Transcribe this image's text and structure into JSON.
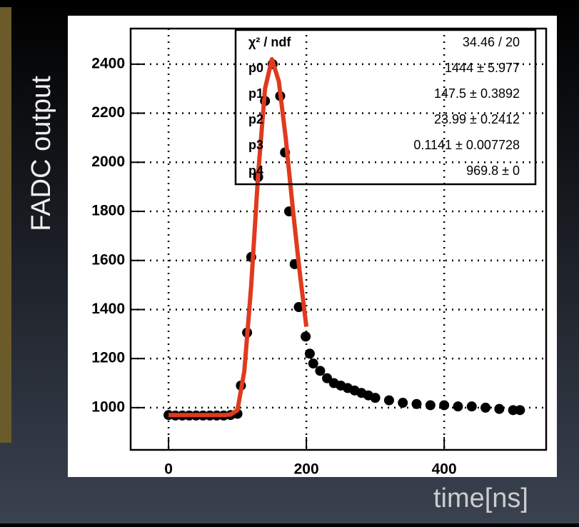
{
  "chart_data": {
    "type": "scatter",
    "xlabel": "time[ns]",
    "ylabel": "FADC output",
    "xlim": [
      -55,
      548
    ],
    "ylim": [
      828,
      2545
    ],
    "xticks": [
      0,
      200,
      400
    ],
    "yticks": [
      1000,
      1200,
      1400,
      1600,
      1800,
      2000,
      2200,
      2400
    ],
    "grid": true,
    "series": [
      {
        "type": "scatter",
        "color": "#000000",
        "x": [
          0,
          10,
          20,
          30,
          40,
          50,
          60,
          70,
          80,
          90,
          100,
          105,
          114,
          120,
          130,
          140,
          151,
          162,
          169,
          175,
          183,
          189,
          199,
          205,
          210,
          220,
          230,
          240,
          250,
          260,
          270,
          280,
          290,
          300,
          320,
          340,
          360,
          380,
          400,
          420,
          440,
          460,
          480,
          500,
          510
        ],
        "values": [
          970,
          968,
          968,
          968,
          968,
          968,
          968,
          968,
          968,
          970,
          975,
          1090,
          1306,
          1614,
          1940,
          2250,
          2400,
          2270,
          2040,
          1800,
          1585,
          1410,
          1290,
          1220,
          1180,
          1150,
          1120,
          1100,
          1090,
          1080,
          1070,
          1060,
          1050,
          1040,
          1030,
          1020,
          1015,
          1010,
          1010,
          1005,
          1005,
          1000,
          995,
          990,
          990
        ]
      },
      {
        "type": "line",
        "color": "#e03a1e",
        "x": [
          0,
          10,
          20,
          30,
          40,
          50,
          60,
          70,
          80,
          90,
          100,
          110,
          120,
          130,
          140,
          150,
          160,
          170,
          180,
          190,
          200
        ],
        "values": [
          970,
          970,
          970,
          970,
          970,
          970,
          970,
          970,
          970,
          972,
          990,
          1150,
          1500,
          1950,
          2300,
          2420,
          2330,
          2100,
          1820,
          1560,
          1330
        ]
      }
    ],
    "stats": [
      {
        "label": "χ² / ndf",
        "value": "34.46 / 20"
      },
      {
        "label": "p0",
        "value": "1444 ± 5.977"
      },
      {
        "label": "p1",
        "value": "147.5 ± 0.3892"
      },
      {
        "label": "p2",
        "value": "23.99 ± 0.2412"
      },
      {
        "label": "p3",
        "value": "0.1141 ± 0.007728"
      },
      {
        "label": "p4",
        "value": "969.8 ± 0"
      }
    ]
  }
}
